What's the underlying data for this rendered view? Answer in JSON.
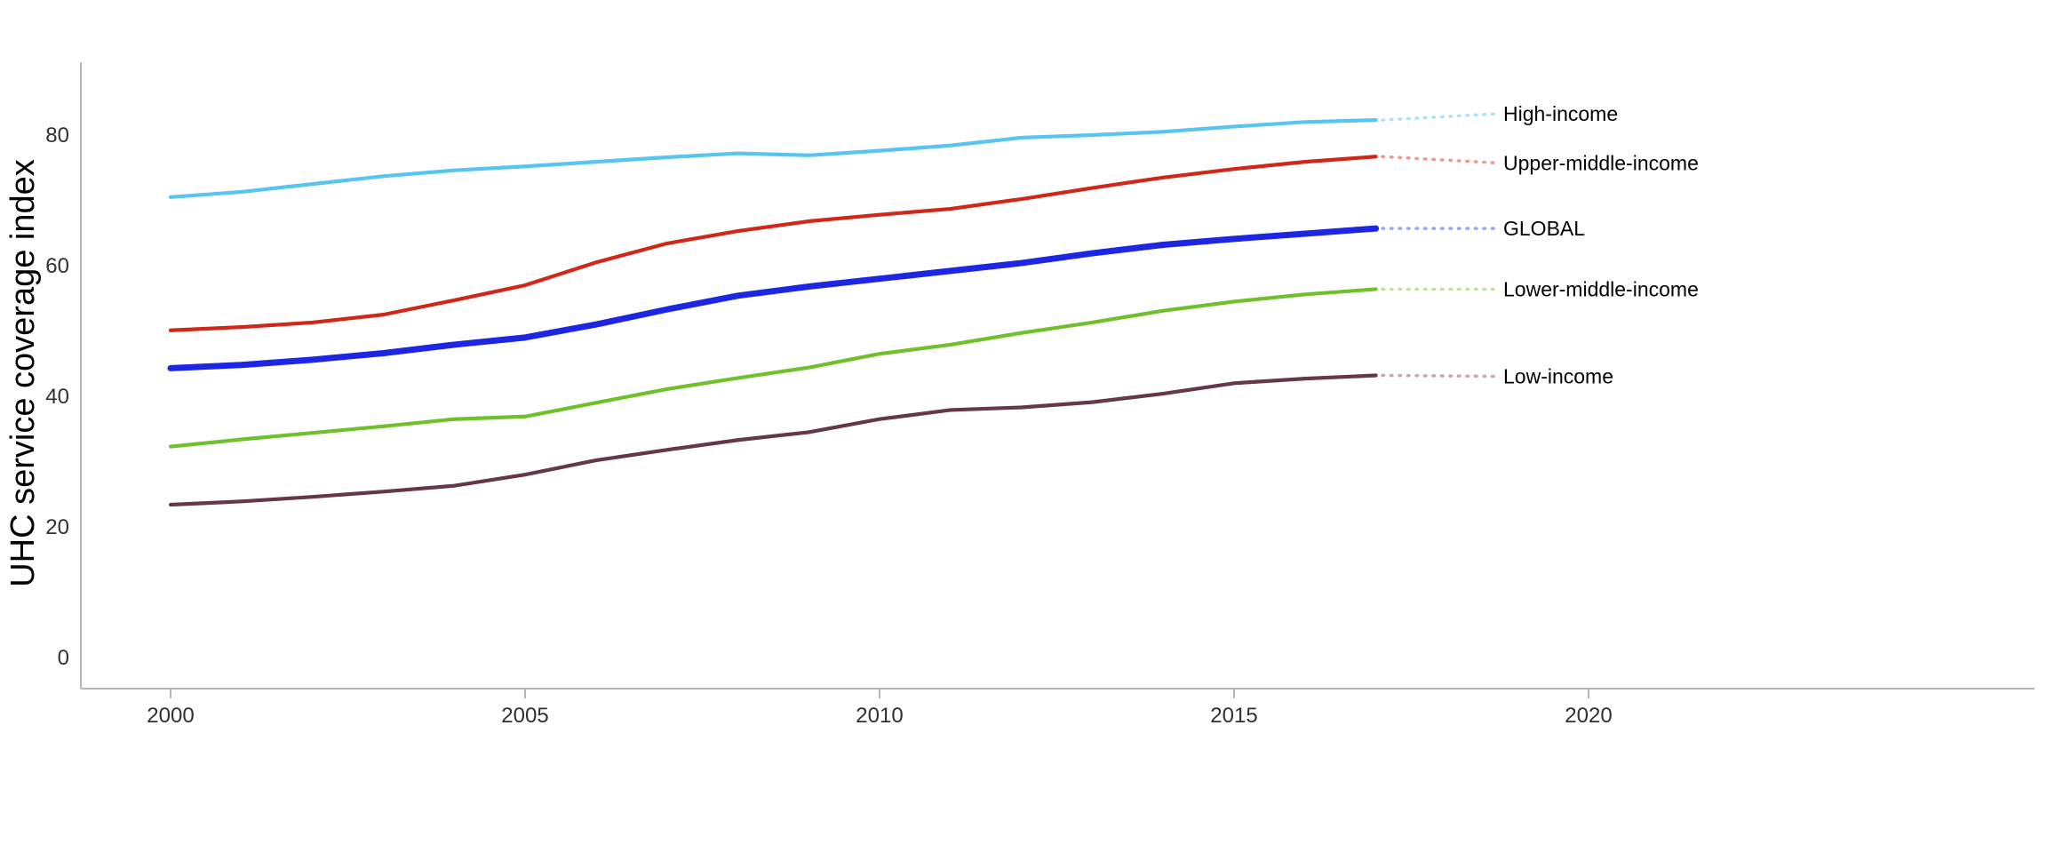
{
  "chart": {
    "y_axis_title": "UHC service coverage index",
    "background_color": "#ffffff",
    "axis_color": "#b5b5b5",
    "tick_text_color": "#303030",
    "label_text_color": "#000000"
  },
  "chart_data": {
    "type": "line",
    "title": "",
    "xlabel": "",
    "ylabel": "UHC service coverage index",
    "x": [
      2000,
      2001,
      2002,
      2003,
      2004,
      2005,
      2006,
      2007,
      2008,
      2009,
      2010,
      2011,
      2012,
      2013,
      2014,
      2015,
      2016,
      2017
    ],
    "x_ticks": [
      "2000",
      "2005",
      "2010",
      "2015",
      "2020"
    ],
    "x_tick_values": [
      2000,
      2005,
      2010,
      2015,
      2020
    ],
    "y_ticks": [
      "0",
      "20",
      "40",
      "60",
      "80"
    ],
    "y_tick_values": [
      0,
      20,
      40,
      60,
      80
    ],
    "xlim": [
      1998.7,
      2026.3
    ],
    "ylim": [
      -4.8,
      91.2
    ],
    "grid": false,
    "legend_position": "right-of-line-ends",
    "series": [
      {
        "name": "High-income",
        "color": "#58C5F1",
        "leader_dot_color": "#ABE2F8",
        "line_width": 4.2,
        "values": [
          70.5,
          71.3,
          72.5,
          73.7,
          74.6,
          75.2,
          75.9,
          76.6,
          77.2,
          76.9,
          77.6,
          78.4,
          79.6,
          80.0,
          80.5,
          81.3,
          82.0,
          82.3
        ]
      },
      {
        "name": "Upper-middle-income",
        "color": "#D02718",
        "leader_dot_color": "#EC9B92",
        "line_width": 4.2,
        "values": [
          50.1,
          50.6,
          51.3,
          52.5,
          54.7,
          57.0,
          60.5,
          63.4,
          65.3,
          66.8,
          67.8,
          68.7,
          70.2,
          71.9,
          73.5,
          74.8,
          75.9,
          76.7
        ]
      },
      {
        "name": "GLOBAL",
        "color": "#1C26E3",
        "leader_dot_color": "#9AA5F0",
        "line_width": 7,
        "values": [
          44.3,
          44.8,
          45.6,
          46.6,
          47.9,
          49.0,
          51.0,
          53.3,
          55.4,
          56.8,
          58.0,
          59.2,
          60.4,
          61.9,
          63.2,
          64.1,
          64.9,
          65.7
        ]
      },
      {
        "name": "Lower-middle-income",
        "color": "#70C02B",
        "leader_dot_color": "#BEE29B",
        "line_width": 4.2,
        "values": [
          32.3,
          33.4,
          34.4,
          35.4,
          36.5,
          36.9,
          39.0,
          41.1,
          42.8,
          44.4,
          46.5,
          47.9,
          49.7,
          51.3,
          53.1,
          54.5,
          55.6,
          56.4
        ]
      },
      {
        "name": "Low-income",
        "color": "#643844",
        "leader_dot_color": "#CAA5AE",
        "line_width": 4.2,
        "values": [
          23.4,
          23.9,
          24.6,
          25.4,
          26.3,
          28.0,
          30.2,
          31.8,
          33.3,
          34.5,
          36.5,
          37.9,
          38.3,
          39.1,
          40.4,
          42.0,
          42.7,
          43.2
        ]
      }
    ]
  }
}
